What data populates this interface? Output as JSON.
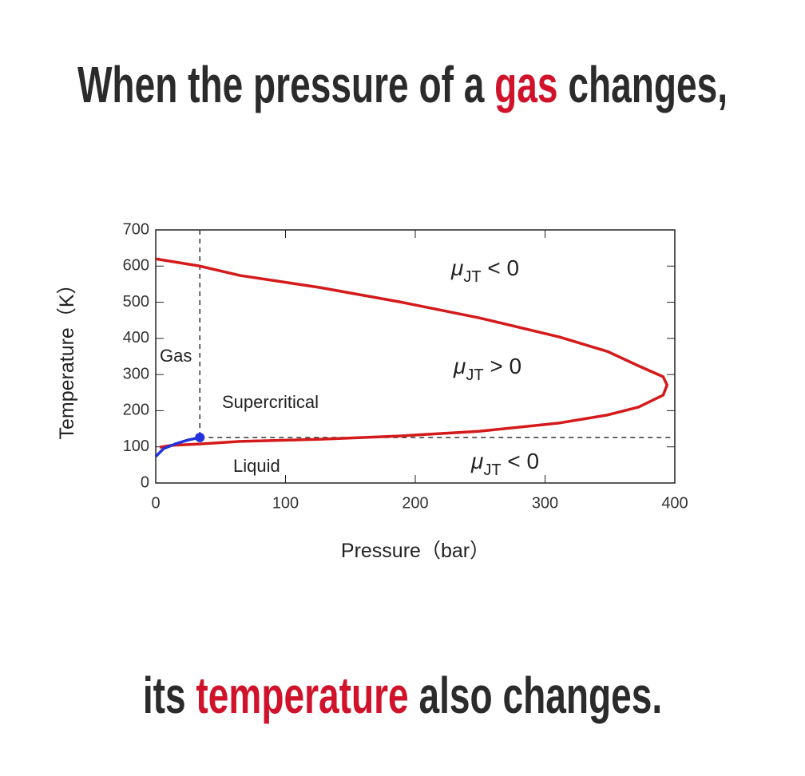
{
  "caption_top": [
    {
      "text": "When the pressure of a "
    },
    {
      "text": "gas",
      "color": "#d0132a"
    },
    {
      "text": " changes,"
    }
  ],
  "caption_bottom": [
    {
      "text": "its "
    },
    {
      "text": "temperature",
      "color": "#d0132a"
    },
    {
      "text": " also changes."
    }
  ],
  "chart_data": {
    "type": "line",
    "x_label": "Pressure（bar）",
    "y_label": "Temperature（K）",
    "xlim": [
      0,
      400
    ],
    "xticks": [
      0,
      100,
      200,
      300,
      400
    ],
    "ylim": [
      0,
      700
    ],
    "yticks": [
      0,
      100,
      200,
      300,
      400,
      500,
      600,
      700
    ],
    "series": [
      {
        "color": "#d41a1a",
        "x": [
          0,
          34,
          65,
          126,
          188,
          249,
          311,
          348,
          372,
          391,
          394,
          391,
          372,
          348,
          311,
          249,
          188,
          126,
          65,
          34,
          12,
          3
        ],
        "values": [
          620,
          600,
          574,
          541,
          501,
          457,
          404,
          364,
          324,
          294,
          271,
          243,
          210,
          188,
          166,
          143,
          130,
          121,
          115,
          108,
          104,
          99
        ]
      },
      {
        "color": "#2233dd",
        "x": [
          0,
          6,
          15,
          25,
          34
        ],
        "values": [
          73,
          95,
          108,
          119,
          126
        ]
      }
    ],
    "critical_point": {
      "x": 34,
      "y": 126,
      "color": "#2233dd"
    },
    "annotations": [
      {
        "text": "Gas"
      },
      {
        "text": "Supercritical"
      },
      {
        "text": "Liquid"
      },
      {
        "main": "μ",
        "sub": "JT",
        "tail": " < 0"
      },
      {
        "main": "μ",
        "sub": "JT",
        "tail": " > 0"
      },
      {
        "main": "μ",
        "sub": "JT",
        "tail": " < 0"
      }
    ]
  }
}
